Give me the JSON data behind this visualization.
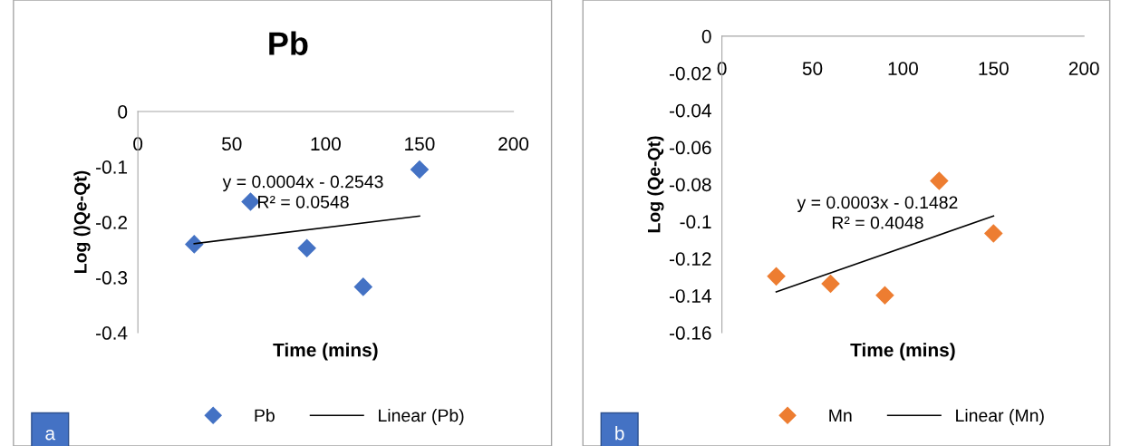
{
  "chart_data": [
    {
      "type": "scatter",
      "title": "Pb",
      "xlabel": "Time (mins)",
      "ylabel": "Log ()Qe-Qt)",
      "xlim": [
        0,
        200
      ],
      "xticks": [
        0,
        50,
        100,
        150,
        200
      ],
      "ylim": [
        -0.4,
        0
      ],
      "yticks": [
        -0.4,
        -0.3,
        -0.2,
        -0.1,
        0
      ],
      "legend": "bottom",
      "grid": false,
      "series": [
        {
          "name": "Pb",
          "color": "#4472c4",
          "marker": "diamond",
          "x": [
            30,
            60,
            90,
            120,
            150
          ],
          "values": [
            -0.24,
            -0.163,
            -0.247,
            -0.317,
            -0.105
          ]
        },
        {
          "name": "Linear (Pb)",
          "type": "line",
          "marker": "none",
          "color": "#000000",
          "x": [
            30,
            150
          ],
          "values": [
            -0.239,
            -0.189
          ]
        }
      ],
      "annotations": [
        "y = 0.0004x - 0.2543\nR² = 0.0548",
        "a"
      ]
    },
    {
      "type": "scatter",
      "xlabel": "Time (mins)",
      "ylabel": "Log (Qe-Qt)",
      "xlim": [
        0,
        200
      ],
      "xticks": [
        0,
        50,
        100,
        150,
        200
      ],
      "ylim": [
        -0.16,
        0
      ],
      "yticks": [
        -0.16,
        -0.14,
        -0.12,
        -0.1,
        -0.08,
        -0.06,
        -0.04,
        -0.02,
        0
      ],
      "legend": "bottom",
      "grid": false,
      "series": [
        {
          "name": "Mn",
          "color": "#ed7d31",
          "marker": "diamond",
          "x": [
            30,
            60,
            90,
            120,
            150
          ],
          "values": [
            -0.1296,
            -0.1336,
            -0.1398,
            -0.0781,
            -0.1064
          ]
        },
        {
          "name": "Linear (Mn)",
          "type": "line",
          "marker": "none",
          "color": "#000000",
          "x": [
            30,
            150
          ],
          "values": [
            -0.138,
            -0.097
          ]
        }
      ],
      "annotations": [
        "y = 0.0003x - 0.1482\nR² = 0.4048",
        "b"
      ]
    }
  ]
}
